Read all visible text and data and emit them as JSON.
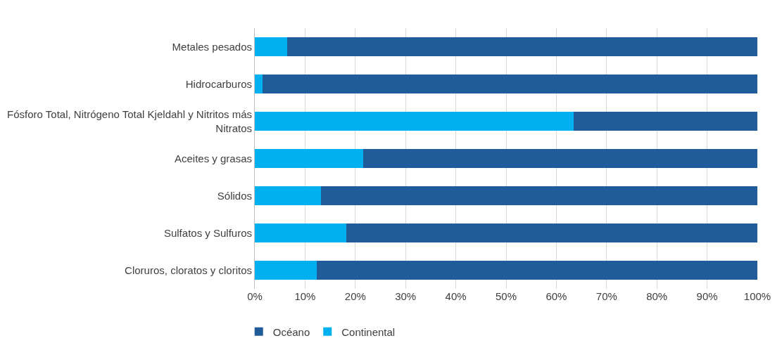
{
  "chart_data": {
    "type": "bar",
    "orientation": "horizontal",
    "stacked": true,
    "categories": [
      "Metales pesados",
      "Hidrocarburos",
      "Fósforo Total, Nitrógeno Total Kjeldahl y Nitritos más Nitratos",
      "Aceites y grasas",
      "Sólidos",
      "Sulfatos y Sulfuros",
      "Cloruros, cloratos y cloritos"
    ],
    "series": [
      {
        "name": "Continental",
        "color": "#00b0f0",
        "values": [
          6.5,
          1.6,
          63.5,
          21.5,
          13.2,
          18.2,
          12.3
        ]
      },
      {
        "name": "Océano",
        "color": "#1f5c99",
        "values": [
          93.5,
          98.4,
          36.5,
          78.5,
          86.8,
          81.8,
          87.7
        ]
      }
    ],
    "xlim": [
      0,
      100
    ],
    "xticks": [
      {
        "value": 0,
        "label": "0%"
      },
      {
        "value": 10,
        "label": "10%"
      },
      {
        "value": 20,
        "label": "20%"
      },
      {
        "value": 30,
        "label": "30%"
      },
      {
        "value": 40,
        "label": "40%"
      },
      {
        "value": 50,
        "label": "50%"
      },
      {
        "value": 60,
        "label": "60%"
      },
      {
        "value": 70,
        "label": "70%"
      },
      {
        "value": 80,
        "label": "80%"
      },
      {
        "value": 90,
        "label": "90%"
      },
      {
        "value": 100,
        "label": "100%"
      }
    ],
    "grid": "x",
    "legend": "bottom"
  }
}
